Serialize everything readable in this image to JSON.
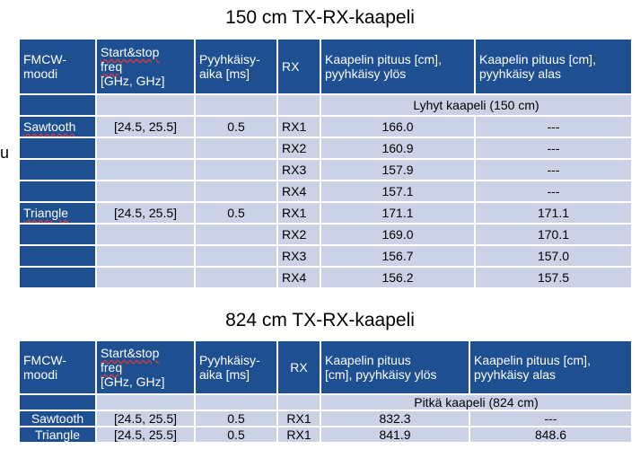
{
  "stray_char": "u",
  "table1": {
    "title": "150 cm TX-RX-kaapeli",
    "headers": {
      "mode_l1": "FMCW-",
      "mode_l2": "moodi",
      "freq_l1": "Start&stop",
      "freq_l2": "freq",
      "freq_l3": "[GHz, GHz]",
      "sweep_l1": "Pyyhkäisy-",
      "sweep_l2": "aika [ms]",
      "rx": "RX",
      "up_l1": "Kaapelin pituus [cm],",
      "up_l2": "pyyhkäisy ylös",
      "down_l1": "Kaapelin pituus [cm],",
      "down_l2": "pyyhkäisy alas"
    },
    "section_label": "Lyhyt kaapeli (150 cm)",
    "rows": [
      {
        "mode": "Sawtooth",
        "freq": "[24.5, 25.5]",
        "sweep": "0.5",
        "rx": "RX1",
        "up": "166.0",
        "down": "---"
      },
      {
        "mode": "",
        "freq": "",
        "sweep": "",
        "rx": "RX2",
        "up": "160.9",
        "down": "---"
      },
      {
        "mode": "",
        "freq": "",
        "sweep": "",
        "rx": "RX3",
        "up": "157.9",
        "down": "---"
      },
      {
        "mode": "",
        "freq": "",
        "sweep": "",
        "rx": "RX4",
        "up": "157.1",
        "down": "---"
      },
      {
        "mode": "Triangle",
        "freq": "[24.5, 25.5]",
        "sweep": "0.5",
        "rx": "RX1",
        "up": "171.1",
        "down": "171.1"
      },
      {
        "mode": "",
        "freq": "",
        "sweep": "",
        "rx": "RX2",
        "up": "169.0",
        "down": "170.1"
      },
      {
        "mode": "",
        "freq": "",
        "sweep": "",
        "rx": "RX3",
        "up": "156.7",
        "down": "157.0"
      },
      {
        "mode": "",
        "freq": "",
        "sweep": "",
        "rx": "RX4",
        "up": "156.2",
        "down": "157.5"
      }
    ]
  },
  "table2": {
    "title": "824 cm TX-RX-kaapeli",
    "headers": {
      "mode_l1": "FMCW-",
      "mode_l2": "moodi",
      "freq_l1": "Start&stop",
      "freq_l2": "freq",
      "freq_l3": "[GHz, GHz]",
      "sweep_l1": "Pyyhkäisy-",
      "sweep_l2": "aika [ms]",
      "rx": "RX",
      "up_l1": "Kaapelin pituus",
      "up_l2": "[cm], pyyhkäisy ylös",
      "down_l1": "Kaapelin pituus [cm],",
      "down_l2": "pyyhkäisy alas"
    },
    "section_label": "Pitkä kaapeli (824 cm)",
    "rows": [
      {
        "mode": "Sawtooth",
        "freq": "[24.5, 25.5]",
        "sweep": "0.5",
        "rx": "RX1",
        "up": "832.3",
        "down": "---"
      },
      {
        "mode": "Triangle",
        "freq": "[24.5, 25.5]",
        "sweep": "0.5",
        "rx": "RX1",
        "up": "841.9",
        "down": "848.6"
      }
    ]
  }
}
